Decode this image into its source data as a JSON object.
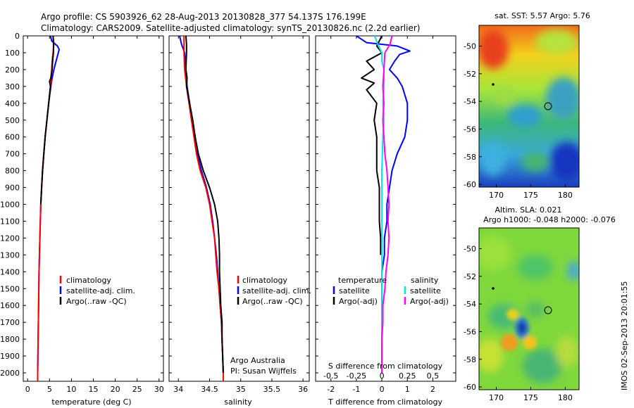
{
  "header": {
    "line1": "Argo profile: CS 5903926_62 28-Aug-2013 20130828_377 54.137S 176.199E",
    "line2": "Climatology: CARS2009. Satellite-adjusted climatology: synTS_20130826.nc (2.2d earlier)"
  },
  "colors": {
    "climatology": "#ff0000",
    "satellite": "#0000ff",
    "argo": "#000000",
    "salinity_satellite": "#00e5e5",
    "salinity_argo": "#ff00ff"
  },
  "depth_axis": {
    "ticks": [
      "0",
      "100",
      "200",
      "300",
      "400",
      "500",
      "600",
      "700",
      "800",
      "900",
      "1000",
      "1100",
      "1200",
      "1300",
      "1400",
      "1500",
      "1600",
      "1700",
      "1800",
      "1900",
      "2000"
    ]
  },
  "chart_data": [
    {
      "type": "line",
      "name": "temperature-profile",
      "xlabel": "temperature (deg C)",
      "xticks": [
        "0",
        "5",
        "10",
        "15",
        "20",
        "25",
        "30"
      ],
      "xlim": [
        -1,
        31
      ],
      "ylim": [
        2050,
        0
      ],
      "legend": [
        "climatology",
        "satellite-adj. clim.",
        "Argo(..raw -QC)"
      ],
      "series": [
        {
          "key": "climatology",
          "depth": [
            0,
            50,
            100,
            150,
            200,
            250,
            300,
            400,
            500,
            600,
            700,
            800,
            900,
            1000,
            1200,
            1400,
            1600,
            1800,
            2000,
            2050
          ],
          "values": [
            5.8,
            6.0,
            5.8,
            5.6,
            5.5,
            5.3,
            5.2,
            4.8,
            4.4,
            4.0,
            3.7,
            3.4,
            3.2,
            3.0,
            2.8,
            2.6,
            2.5,
            2.4,
            2.3,
            2.3
          ]
        },
        {
          "key": "satellite",
          "depth": [
            0,
            30,
            60,
            80,
            100,
            150,
            200,
            250,
            300,
            400,
            500,
            600,
            700,
            800,
            900,
            1000,
            1200,
            1400,
            1600,
            1800,
            2000,
            2050
          ],
          "values": [
            5.2,
            5.5,
            6.8,
            7.2,
            7.0,
            6.5,
            6.0,
            5.6,
            5.3,
            4.8,
            4.4,
            4.0,
            3.7,
            3.4,
            3.2,
            3.0,
            2.8,
            2.6,
            2.5,
            2.4,
            2.3,
            2.3
          ]
        },
        {
          "key": "argo",
          "depth": [
            0,
            40,
            100,
            150,
            200,
            250,
            270,
            300,
            400,
            500,
            600,
            700,
            800,
            900,
            1000
          ],
          "values": [
            5.8,
            5.9,
            5.9,
            5.7,
            5.6,
            5.3,
            5.0,
            5.2,
            4.8,
            4.4,
            4.0,
            3.7,
            3.4,
            3.2,
            3.0
          ]
        }
      ]
    },
    {
      "type": "line",
      "name": "salinity-profile",
      "xlabel": "salinity",
      "xticks": [
        "34",
        "34.5",
        "35",
        "35.5",
        "36"
      ],
      "xlim": [
        33.85,
        36.1
      ],
      "ylim": [
        2050,
        0
      ],
      "legend": [
        "climatology",
        "satellite-adj. clim.",
        "Argo(..raw -QC)"
      ],
      "annotation": [
        "Argo Australia",
        "PI: Susan Wijffels"
      ],
      "series": [
        {
          "key": "climatology",
          "depth": [
            0,
            100,
            200,
            300,
            400,
            500,
            600,
            700,
            800,
            900,
            1000,
            1100,
            1200,
            1300,
            1400,
            1500,
            1600,
            1700,
            1800,
            1900,
            2000,
            2050
          ],
          "values": [
            34.09,
            34.09,
            34.1,
            34.13,
            34.17,
            34.21,
            34.25,
            34.29,
            34.35,
            34.44,
            34.5,
            34.54,
            34.58,
            34.6,
            34.62,
            34.65,
            34.67,
            34.69,
            34.7,
            34.71,
            34.72,
            34.72
          ]
        },
        {
          "key": "satellite",
          "depth": [
            0,
            50,
            100,
            150,
            200,
            300,
            400,
            500,
            600,
            700,
            800,
            900,
            1000,
            1100,
            1200,
            1300,
            1400,
            1500,
            1600,
            1700,
            1800,
            1900,
            2000
          ],
          "values": [
            34.02,
            34.05,
            34.1,
            34.11,
            34.12,
            34.14,
            34.18,
            34.22,
            34.26,
            34.3,
            34.37,
            34.45,
            34.51,
            34.55,
            34.58,
            34.61,
            34.63,
            34.65,
            34.67,
            34.69,
            34.7,
            34.71,
            34.72
          ]
        },
        {
          "key": "argo",
          "depth": [
            0,
            50,
            100,
            200,
            250,
            300,
            400,
            500,
            600,
            700,
            800,
            900,
            1000,
            1100,
            1200,
            1300,
            1400,
            1500,
            1600,
            1700,
            1800,
            1900,
            2000
          ],
          "values": [
            34.12,
            34.13,
            34.13,
            34.12,
            34.14,
            34.13,
            34.18,
            34.23,
            34.27,
            34.32,
            34.4,
            34.5,
            34.58,
            34.63,
            34.65,
            34.66,
            34.66,
            34.67,
            34.68,
            34.7,
            34.7,
            34.71,
            34.72
          ]
        }
      ]
    },
    {
      "type": "line",
      "name": "difference-profile",
      "xlabel": "T difference from climatology",
      "xlabel2": "S difference from climatology",
      "xticks": [
        "-2",
        "-1",
        "0",
        "1",
        "2"
      ],
      "xticks2": [
        "-0.5",
        "-0.25",
        "0",
        "0.25",
        "0.5"
      ],
      "xlim": [
        -2.6,
        2.9
      ],
      "ylim": [
        2050,
        0
      ],
      "legend_temperature": {
        "title": "temperature",
        "items": [
          "satellite",
          "Argo(-adj)"
        ]
      },
      "legend_salinity": {
        "title": "salinity",
        "items": [
          "satellite",
          "Argo(-adj)"
        ]
      },
      "series": [
        {
          "key": "T-satellite",
          "depth": [
            0,
            40,
            60,
            90,
            110,
            150,
            200,
            250,
            300,
            400,
            500,
            600,
            700,
            800,
            900,
            1000,
            1100,
            1200,
            1300,
            1400,
            1600,
            1800,
            2000
          ],
          "values": [
            -1.0,
            -0.6,
            0.6,
            1.1,
            0.7,
            0.5,
            0.3,
            0.6,
            0.8,
            1.0,
            1.0,
            0.9,
            0.6,
            0.4,
            0.3,
            0.2,
            0.2,
            0.1,
            0.1,
            0.0,
            0.0,
            0.0,
            0.0
          ]
        },
        {
          "key": "T-argo",
          "depth": [
            0,
            60,
            100,
            150,
            200,
            250,
            280,
            320,
            400,
            500,
            600,
            700,
            800,
            900,
            1000,
            1100,
            1200,
            1300
          ],
          "values": [
            0.0,
            -0.2,
            0.0,
            -0.6,
            -0.3,
            -0.8,
            -0.3,
            -0.6,
            -0.2,
            -0.3,
            -0.2,
            -0.2,
            -0.2,
            -0.1,
            -0.1,
            -0.1,
            -0.05,
            -0.05
          ]
        },
        {
          "key": "S-satellite",
          "depth": [
            0,
            50,
            100,
            150,
            200,
            300,
            400,
            500,
            600,
            800,
            1000,
            1200,
            1400,
            1600,
            1800,
            2000
          ],
          "values": [
            -0.07,
            -0.04,
            0.0,
            0.0,
            0.02,
            0.02,
            0.01,
            0.02,
            0.01,
            0.0,
            0.0,
            0.0,
            0.0,
            0.0,
            0.0,
            0.0
          ]
        },
        {
          "key": "S-argo",
          "depth": [
            0,
            50,
            100,
            200,
            300,
            400,
            500,
            600,
            700,
            800,
            900,
            1000,
            1100,
            1200,
            1300,
            1400,
            1500,
            1600,
            1700,
            1800,
            1900,
            2000
          ],
          "values": [
            0.1,
            0.08,
            0.03,
            0.02,
            0.01,
            0.02,
            0.01,
            0.02,
            0.03,
            0.05,
            0.06,
            0.07,
            0.06,
            0.07,
            0.06,
            0.04,
            0.03,
            0.01,
            0.01,
            0.0,
            0.0,
            0.0
          ]
        }
      ]
    },
    {
      "type": "heatmap",
      "name": "sst-map",
      "title": "sat. SST: 5.57 Argo: 5.76",
      "xticks": [
        "170",
        "175",
        "180"
      ],
      "yticks": [
        "-50",
        "-52",
        "-54",
        "-56",
        "-58",
        "-60"
      ]
    },
    {
      "type": "heatmap",
      "name": "sla-map",
      "title1": "Altim. SLA: 0.021",
      "title2": "Argo h1000: -0.048 h2000: -0.076",
      "xticks": [
        "170",
        "175",
        "180"
      ],
      "yticks": [
        "-50",
        "-52",
        "-54",
        "-56",
        "-58",
        "-60"
      ]
    }
  ],
  "side_label": "IMOS 02-Sep-2013 20:01:55"
}
